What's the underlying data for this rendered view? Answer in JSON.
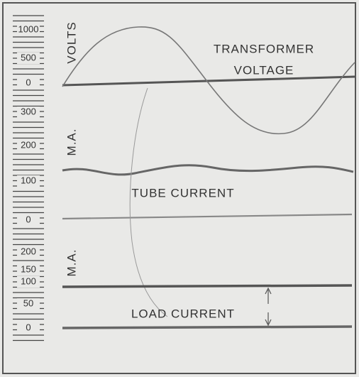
{
  "panels": [
    {
      "unit": "VOLTS",
      "title": [
        "TRANSFORMER",
        "VOLTAGE"
      ],
      "scale": [
        "1000",
        "500",
        "0"
      ]
    },
    {
      "unit": "M.A.",
      "title": [
        "TUBE CURRENT"
      ],
      "scale": [
        "300",
        "200",
        "100",
        "0"
      ]
    },
    {
      "unit": "M.A.",
      "title": [
        "LOAD CURRENT"
      ],
      "scale": [
        "200",
        "150",
        "100",
        "50",
        "0"
      ]
    }
  ]
}
